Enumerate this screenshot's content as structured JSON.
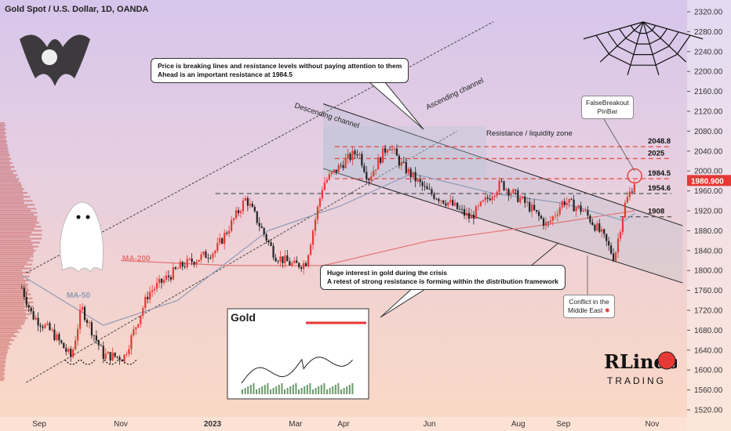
{
  "title": "Gold Spot / U.S. Dollar, 1D, OANDA",
  "callouts": {
    "top_line1": "Price is breaking lines and resistance levels without paying attention to them",
    "top_line2": "Ahead is an important resistance at 1984.5",
    "mid_line1": "Huge interest in gold during the crisis",
    "mid_line2": "A retest of strong resistance is forming within the distribution framework"
  },
  "notes": {
    "false_breakout_1": "FalseBreakout",
    "false_breakout_2": "PinBar",
    "conflict_1": "Conflict in the",
    "conflict_2": "Middle East"
  },
  "labels": {
    "ascending": "Ascending channel",
    "descending": "Descending channel",
    "resistance_zone": "Resistance / liquidity zone",
    "ma200": "MA-200",
    "ma50": "MA-50",
    "inset_title": "Gold",
    "logo_top": "RLindo",
    "logo_bottom": "TRADING"
  },
  "colors": {
    "bull": "#e53935",
    "bear": "#222222",
    "ma200": "#e57373",
    "ma50": "#8e9bb8",
    "price_tag": "#e53935",
    "resistance": "#e53935"
  },
  "chart_data": {
    "type": "candlestick",
    "symbol": "Gold Spot / U.S. Dollar",
    "timeframe": "1D",
    "ylim": [
      1520,
      2320
    ],
    "y_ticks": [
      "2320.00",
      "2280.00",
      "2240.00",
      "2200.00",
      "2160.00",
      "2120.00",
      "2080.00",
      "2040.00",
      "2000.00",
      "1960.00",
      "1920.00",
      "1880.00",
      "1840.00",
      "1800.00",
      "1760.00",
      "1720.00",
      "1680.00",
      "1640.00",
      "1600.00",
      "1560.00",
      "1520.00"
    ],
    "x_ticks": [
      "Sep",
      "Nov",
      "2023",
      "Mar",
      "Apr",
      "Jun",
      "Aug",
      "Sep",
      "Nov"
    ],
    "last_price": "1980.900",
    "levels": [
      {
        "label": "2048.8",
        "value": 2048.8
      },
      {
        "label": "2025",
        "value": 2025
      },
      {
        "label": "1984.5",
        "value": 1984.5
      },
      {
        "label": "1954.6",
        "value": 1954.6
      },
      {
        "label": "1908",
        "value": 1908
      }
    ],
    "price_path": [
      [
        "2022-08-25",
        1765
      ],
      [
        "2022-09-01",
        1710
      ],
      [
        "2022-09-15",
        1675
      ],
      [
        "2022-09-28",
        1625
      ],
      [
        "2022-10-05",
        1725
      ],
      [
        "2022-10-20",
        1630
      ],
      [
        "2022-11-03",
        1625
      ],
      [
        "2022-11-20",
        1755
      ],
      [
        "2022-12-13",
        1810
      ],
      [
        "2023-01-05",
        1840
      ],
      [
        "2023-01-26",
        1945
      ],
      [
        "2023-02-15",
        1830
      ],
      [
        "2023-02-28",
        1810
      ],
      [
        "2023-03-08",
        1815
      ],
      [
        "2023-03-20",
        1975
      ],
      [
        "2023-04-04",
        2020
      ],
      [
        "2023-04-13",
        2040
      ],
      [
        "2023-04-20",
        1985
      ],
      [
        "2023-05-04",
        2055
      ],
      [
        "2023-05-12",
        2015
      ],
      [
        "2023-05-30",
        1960
      ],
      [
        "2023-06-15",
        1935
      ],
      [
        "2023-06-29",
        1905
      ],
      [
        "2023-07-20",
        1975
      ],
      [
        "2023-08-08",
        1930
      ],
      [
        "2023-08-21",
        1890
      ],
      [
        "2023-09-01",
        1940
      ],
      [
        "2023-09-15",
        1920
      ],
      [
        "2023-09-28",
        1870
      ],
      [
        "2023-10-06",
        1825
      ],
      [
        "2023-10-13",
        1930
      ],
      [
        "2023-10-20",
        1980
      ]
    ],
    "ma50": [
      [
        "2022-08-25",
        1790
      ],
      [
        "2022-10-20",
        1690
      ],
      [
        "2022-12-10",
        1740
      ],
      [
        "2023-02-10",
        1880
      ],
      [
        "2023-04-01",
        1930
      ],
      [
        "2023-05-20",
        1995
      ],
      [
        "2023-07-15",
        1955
      ],
      [
        "2023-09-01",
        1935
      ],
      [
        "2023-10-13",
        1900
      ],
      [
        "2023-10-20",
        1915
      ]
    ],
    "ma200": [
      [
        "2022-11-01",
        1820
      ],
      [
        "2023-01-15",
        1810
      ],
      [
        "2023-03-20",
        1810
      ],
      [
        "2023-06-01",
        1860
      ],
      [
        "2023-08-15",
        1890
      ],
      [
        "2023-10-20",
        1920
      ]
    ]
  }
}
